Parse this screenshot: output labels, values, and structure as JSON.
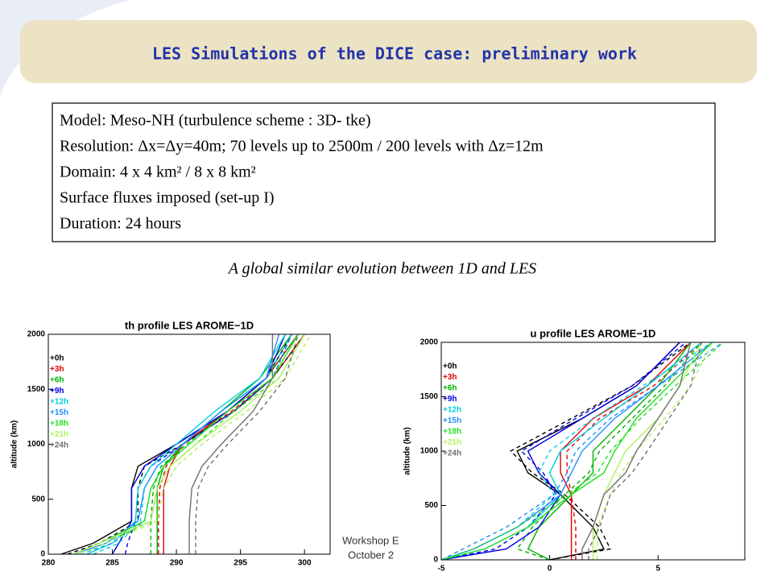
{
  "header": {
    "title": "LES Simulations of the DICE case: preliminary work"
  },
  "box": {
    "lines": [
      "Model: Meso-NH (turbulence scheme : 3D- tke)",
      "Resolution: Δx=Δy=40m; 70 levels up to 2500m / 200 levels with Δz=12m",
      "Domain:  4 x 4 km² / 8 x 8 km²",
      "Surface fluxes imposed (set-up I)",
      "Duration: 24 hours"
    ]
  },
  "conclusion": "A global similar evolution between 1D and LES",
  "footer": [
    "Workshop E",
    "October 2"
  ],
  "chart_data": [
    {
      "type": "line",
      "title": "th profile LES AROME−1D",
      "y_label": "altitude (km)",
      "xlim": [
        280,
        302
      ],
      "xticks": [
        280,
        285,
        290,
        295,
        300
      ],
      "ylim": [
        0,
        2000
      ],
      "yticks": [
        0,
        500,
        1000,
        1500,
        2000
      ],
      "levels": [
        0,
        100,
        300,
        600,
        800,
        1000,
        1300,
        1600,
        2000
      ],
      "series": [
        {
          "name": "+0h",
          "color": "#000000",
          "les": [
            281,
            283.5,
            286.5,
            286.5,
            287,
            290,
            294,
            297,
            299
          ],
          "model": [
            281.5,
            284,
            287,
            287,
            287.5,
            290.5,
            294.5,
            297.5,
            300
          ]
        },
        {
          "name": "+3h",
          "color": "#e00000",
          "les": [
            289,
            289,
            289,
            289,
            289.5,
            290.5,
            294,
            297,
            299.5
          ],
          "model": [
            288.6,
            288.6,
            288.6,
            288.7,
            289.2,
            290.5,
            294.3,
            297.5,
            300
          ]
        },
        {
          "name": "+6h",
          "color": "#00b000",
          "les": [
            288.5,
            288.5,
            288.5,
            288.5,
            289,
            290.5,
            293.5,
            296.5,
            299
          ],
          "model": [
            288,
            288,
            288,
            288.2,
            288.8,
            290.8,
            294,
            297,
            299.5
          ]
        },
        {
          "name": "+9h",
          "color": "#0000e0",
          "les": [
            285,
            285.5,
            286.5,
            286.5,
            287.5,
            290,
            294,
            297,
            298.5
          ],
          "model": [
            286,
            286.2,
            286.8,
            287,
            288,
            290.5,
            294.5,
            297.5,
            299
          ]
        },
        {
          "name": "+12h",
          "color": "#00d0e0",
          "les": [
            283,
            285,
            286.8,
            287,
            288,
            290,
            293,
            296.5,
            298.5
          ],
          "model": [
            283.5,
            285.5,
            287.2,
            287.5,
            288.5,
            290.5,
            293.5,
            297,
            299
          ]
        },
        {
          "name": "+15h",
          "color": "#2090ff",
          "les": [
            282,
            284.5,
            287,
            287.5,
            288.5,
            290.5,
            293.5,
            297,
            298
          ],
          "model": [
            282.5,
            285,
            287.5,
            288,
            289,
            291,
            294,
            297.5,
            299
          ]
        },
        {
          "name": "+18h",
          "color": "#20e020",
          "les": [
            282,
            284,
            287.5,
            288,
            289,
            291,
            294,
            297.5,
            299.5
          ],
          "model": [
            282.5,
            284.5,
            288,
            288.5,
            289.5,
            291.5,
            294.5,
            298,
            300
          ]
        },
        {
          "name": "+21h",
          "color": "#b0f060",
          "les": [
            282,
            284,
            288,
            288.5,
            289.5,
            291.5,
            295,
            298,
            300
          ],
          "model": [
            282.5,
            284.5,
            288.5,
            289,
            290,
            292,
            295.5,
            298.5,
            300.5
          ]
        },
        {
          "name": "+24h",
          "color": "#707070",
          "les": [
            291,
            291,
            291,
            291.2,
            292,
            293.5,
            296,
            297.5,
            297.5
          ],
          "model": [
            291.5,
            291.5,
            291.5,
            291.7,
            292.5,
            294,
            296.5,
            298.5,
            299.5
          ]
        }
      ]
    },
    {
      "type": "line",
      "title": "u profile LES AROME−1D",
      "y_label": "altitude (km)",
      "xlim": [
        -5,
        9
      ],
      "xticks": [
        -5,
        0,
        5
      ],
      "ylim": [
        0,
        2000
      ],
      "yticks": [
        0,
        500,
        1000,
        1500,
        2000
      ],
      "levels": [
        0,
        100,
        300,
        600,
        800,
        1000,
        1300,
        1600,
        2000
      ],
      "series": [
        {
          "name": "+0h",
          "color": "#000000",
          "les": [
            0,
            2.5,
            2,
            0.5,
            -1,
            -1.5,
            1.5,
            4,
            6
          ],
          "model": [
            0,
            2.8,
            2.3,
            0.7,
            -0.8,
            -1.8,
            1,
            3.8,
            6.5
          ]
        },
        {
          "name": "+3h",
          "color": "#e00000",
          "les": [
            1,
            1,
            1,
            1,
            0.5,
            0.5,
            2,
            4.5,
            6.5
          ],
          "model": [
            1.2,
            1.2,
            1.2,
            1,
            0.8,
            0.8,
            2.3,
            4.8,
            7
          ]
        },
        {
          "name": "+6h",
          "color": "#00b000",
          "les": [
            0,
            -1,
            -0.5,
            1,
            2,
            2,
            3.5,
            5,
            6.5
          ],
          "model": [
            0,
            -1.5,
            -0.8,
            0.7,
            1.8,
            2.3,
            3.8,
            5.3,
            7
          ]
        },
        {
          "name": "+9h",
          "color": "#0000e0",
          "les": [
            -5,
            -2,
            -0.5,
            0.5,
            -0.5,
            -1,
            1.5,
            4,
            6
          ],
          "model": [
            -5,
            -2.5,
            -1,
            0.3,
            -0.3,
            -1.3,
            1.2,
            3.8,
            6.3
          ]
        },
        {
          "name": "+12h",
          "color": "#00d0e0",
          "les": [
            -5,
            -3,
            -1,
            0.5,
            0,
            0.5,
            2.5,
            4.5,
            7
          ],
          "model": [
            -5,
            -3.5,
            -1.5,
            0.2,
            -0.5,
            0,
            2,
            4.3,
            7.5
          ]
        },
        {
          "name": "+15h",
          "color": "#2090ff",
          "les": [
            -5,
            -3.5,
            -1.5,
            0.5,
            1,
            1.5,
            3,
            5,
            7.5
          ],
          "model": [
            -5,
            -4,
            -2,
            0.2,
            0.8,
            1.2,
            2.8,
            5,
            8
          ]
        },
        {
          "name": "+18h",
          "color": "#20e020",
          "les": [
            -5,
            -3,
            -1,
            1,
            2.5,
            3,
            4,
            5.5,
            7.5
          ],
          "model": [
            -5,
            -3.5,
            -1.5,
            0.8,
            2.2,
            2.8,
            4.2,
            5.8,
            8
          ]
        },
        {
          "name": "+21h",
          "color": "#b0f060",
          "les": [
            2,
            2,
            2,
            2.5,
            3,
            3.5,
            5,
            6,
            7
          ],
          "model": [
            2.2,
            2.2,
            2.2,
            2.8,
            3.3,
            4,
            5.3,
            6.5,
            7.5
          ]
        },
        {
          "name": "+24h",
          "color": "#707070",
          "les": [
            1.5,
            1.5,
            2,
            2.5,
            3.5,
            4,
            5,
            6,
            6.5
          ],
          "model": [
            1.8,
            1.8,
            2.3,
            2.8,
            3.8,
            4.5,
            5.5,
            6.5,
            7
          ]
        }
      ]
    }
  ]
}
